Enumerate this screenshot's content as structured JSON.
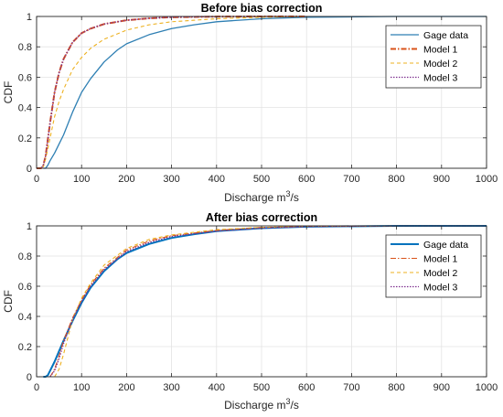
{
  "chart_data": [
    {
      "type": "line",
      "title": "Before bias correction",
      "xlabel": "Discharge m",
      "xlabel_sup": "3",
      "xlabel_suffix": "/s",
      "ylabel": "CDF",
      "xlim": [
        0,
        1000
      ],
      "ylim": [
        0,
        1
      ],
      "xticks": [
        "0",
        "100",
        "200",
        "300",
        "400",
        "500",
        "600",
        "700",
        "800",
        "900",
        "1000"
      ],
      "yticks": [
        "0",
        "0.2",
        "0.4",
        "0.6",
        "0.8",
        "1"
      ],
      "grid": true,
      "legend_position": "top-right",
      "series": [
        {
          "name": "Gage data",
          "color": "#2e7fb3",
          "dash": "",
          "width": 1.3,
          "x": [
            15,
            20,
            25,
            30,
            40,
            50,
            60,
            80,
            100,
            120,
            150,
            180,
            200,
            250,
            300,
            350,
            400,
            500,
            600,
            800,
            1000
          ],
          "y": [
            0,
            0,
            0.02,
            0.05,
            0.1,
            0.16,
            0.22,
            0.37,
            0.5,
            0.59,
            0.7,
            0.78,
            0.82,
            0.88,
            0.92,
            0.945,
            0.965,
            0.985,
            0.995,
            1,
            1
          ]
        },
        {
          "name": "Model 1",
          "color": "#d95319",
          "dash": "6,2,1.5,2",
          "width": 2,
          "x": [
            0,
            10,
            15,
            20,
            30,
            40,
            50,
            60,
            80,
            100,
            120,
            150,
            200,
            250,
            300,
            400,
            500,
            600
          ],
          "y": [
            0,
            0,
            0.02,
            0.08,
            0.3,
            0.5,
            0.63,
            0.72,
            0.83,
            0.89,
            0.92,
            0.95,
            0.975,
            0.988,
            0.995,
            0.999,
            1,
            1
          ]
        },
        {
          "name": "Model 2",
          "color": "#edb120",
          "dash": "4,3",
          "width": 1.1,
          "x": [
            0,
            10,
            15,
            20,
            30,
            40,
            50,
            60,
            80,
            100,
            120,
            150,
            200,
            250,
            300,
            400,
            500,
            600
          ],
          "y": [
            0,
            0,
            0.01,
            0.06,
            0.2,
            0.34,
            0.44,
            0.52,
            0.65,
            0.73,
            0.79,
            0.85,
            0.91,
            0.945,
            0.965,
            0.985,
            0.995,
            1
          ]
        },
        {
          "name": "Model 3",
          "color": "#7e2f8e",
          "dash": "1.5,1.5",
          "width": 1.3,
          "x": [
            0,
            10,
            15,
            20,
            30,
            40,
            50,
            60,
            80,
            100,
            120,
            150,
            200,
            250,
            300,
            400,
            500,
            600
          ],
          "y": [
            0,
            0,
            0.02,
            0.08,
            0.3,
            0.5,
            0.63,
            0.72,
            0.83,
            0.89,
            0.92,
            0.95,
            0.975,
            0.988,
            0.995,
            0.999,
            1,
            1
          ]
        }
      ]
    },
    {
      "type": "line",
      "title": "After bias correction",
      "xlabel": "Discharge m",
      "xlabel_sup": "3",
      "xlabel_suffix": "/s",
      "ylabel": "CDF",
      "xlim": [
        0,
        1000
      ],
      "ylim": [
        0,
        1
      ],
      "xticks": [
        "0",
        "100",
        "200",
        "300",
        "400",
        "500",
        "600",
        "700",
        "800",
        "900",
        "1000"
      ],
      "yticks": [
        "0",
        "0.2",
        "0.4",
        "0.6",
        "0.8",
        "1"
      ],
      "grid": true,
      "legend_position": "top-right",
      "series": [
        {
          "name": "Gage data",
          "color": "#0072bd",
          "dash": "",
          "width": 2,
          "x": [
            15,
            20,
            25,
            30,
            40,
            50,
            60,
            80,
            100,
            120,
            150,
            180,
            200,
            250,
            300,
            350,
            400,
            500,
            600,
            800,
            1000
          ],
          "y": [
            0,
            0,
            0.01,
            0.04,
            0.1,
            0.17,
            0.24,
            0.37,
            0.49,
            0.59,
            0.7,
            0.78,
            0.82,
            0.88,
            0.92,
            0.945,
            0.965,
            0.985,
            0.995,
            1,
            1
          ]
        },
        {
          "name": "Model 1",
          "color": "#d95319",
          "dash": "6,2,1.5,2",
          "width": 1.1,
          "x": [
            30,
            40,
            50,
            60,
            80,
            100,
            120,
            150,
            200,
            250,
            300,
            400,
            500,
            600,
            800,
            1000
          ],
          "y": [
            0,
            0.05,
            0.14,
            0.24,
            0.39,
            0.51,
            0.61,
            0.72,
            0.84,
            0.9,
            0.935,
            0.97,
            0.99,
            0.997,
            1,
            1
          ]
        },
        {
          "name": "Model 2",
          "color": "#edb120",
          "dash": "4,3",
          "width": 1.1,
          "x": [
            40,
            50,
            60,
            80,
            100,
            120,
            150,
            200,
            250,
            300,
            400,
            500,
            600,
            800,
            1000
          ],
          "y": [
            0,
            0.05,
            0.15,
            0.38,
            0.52,
            0.62,
            0.74,
            0.85,
            0.91,
            0.94,
            0.975,
            0.99,
            0.997,
            1,
            1
          ]
        },
        {
          "name": "Model 3",
          "color": "#7e2f8e",
          "dash": "1.5,1.5",
          "width": 1.3,
          "x": [
            30,
            40,
            50,
            60,
            80,
            100,
            120,
            150,
            200,
            250,
            300,
            400,
            500,
            600,
            800,
            1000
          ],
          "y": [
            0,
            0.04,
            0.12,
            0.22,
            0.38,
            0.5,
            0.6,
            0.71,
            0.83,
            0.89,
            0.93,
            0.965,
            0.985,
            0.995,
            1,
            1
          ]
        }
      ]
    }
  ]
}
